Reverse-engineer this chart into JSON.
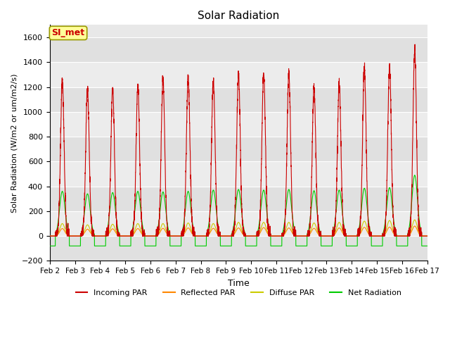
{
  "title": "Solar Radiation",
  "xlabel": "Time",
  "ylabel": "Solar Radiation (W/m2 or um/m2/s)",
  "ylim": [
    -200,
    1700
  ],
  "yticks": [
    -200,
    0,
    200,
    400,
    600,
    800,
    1000,
    1200,
    1400,
    1600
  ],
  "n_days": 15,
  "annotation": "SI_met",
  "annotation_color": "#cc0000",
  "annotation_bg": "#ffff99",
  "colors": {
    "incoming": "#cc0000",
    "reflected": "#ff8800",
    "diffuse": "#cccc00",
    "net": "#00cc00"
  },
  "legend_labels": [
    "Incoming PAR",
    "Reflected PAR",
    "Diffuse PAR",
    "Net Radiation"
  ],
  "peak_values": [
    1250,
    1180,
    1190,
    1200,
    1260,
    1280,
    1250,
    1300,
    1310,
    1300,
    1200,
    1220,
    1350,
    1370,
    1500
  ],
  "net_peaks": [
    360,
    340,
    350,
    360,
    355,
    360,
    370,
    375,
    370,
    375,
    365,
    370,
    385,
    390,
    490
  ],
  "diffuse_peaks": [
    100,
    90,
    95,
    100,
    100,
    105,
    100,
    110,
    110,
    110,
    105,
    110,
    120,
    125,
    130
  ],
  "reflected_peaks": [
    60,
    55,
    58,
    60,
    62,
    65,
    62,
    65,
    68,
    65,
    62,
    65,
    70,
    72,
    80
  ],
  "background_color": "#f0f0f0",
  "plot_bg": "#e8e8e8"
}
